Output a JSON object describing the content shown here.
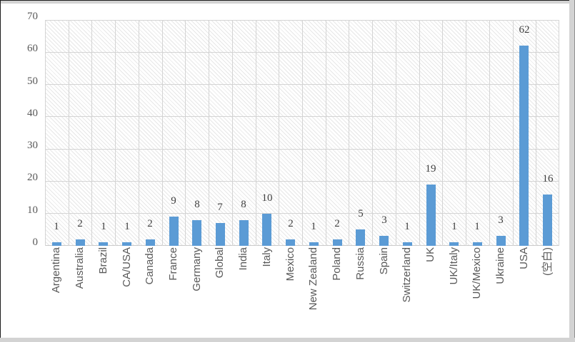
{
  "chart_data": {
    "type": "bar",
    "title": "",
    "xlabel": "",
    "ylabel": "",
    "categories": [
      "Argentina",
      "Australia",
      "Brazil",
      "CA/USA",
      "Canada",
      "France",
      "Germany",
      "Global",
      "India",
      "Italy",
      "Mexico",
      "New Zealand",
      "Poland",
      "Russia",
      "Spain",
      "Switzerland",
      "UK",
      "UK/Italy",
      "UK/Mexico",
      "Ukraine",
      "USA",
      "(空白)"
    ],
    "values": [
      1,
      2,
      1,
      1,
      2,
      9,
      8,
      7,
      8,
      10,
      2,
      1,
      2,
      5,
      3,
      1,
      19,
      1,
      1,
      3,
      62,
      16
    ],
    "ylim": [
      0,
      70
    ],
    "yticks": [
      0,
      10,
      20,
      30,
      40,
      50,
      60,
      70
    ],
    "legend": "none",
    "grid": {
      "horizontal": true,
      "vertical": true
    },
    "data_labels": true,
    "bar_color": "#5B9BD5",
    "plot_background": "white with light downward diagonal hatch",
    "gridline_color": "#d4d4d4",
    "tick_label_color": "#595959",
    "data_label_color": "#3f3f3f"
  }
}
